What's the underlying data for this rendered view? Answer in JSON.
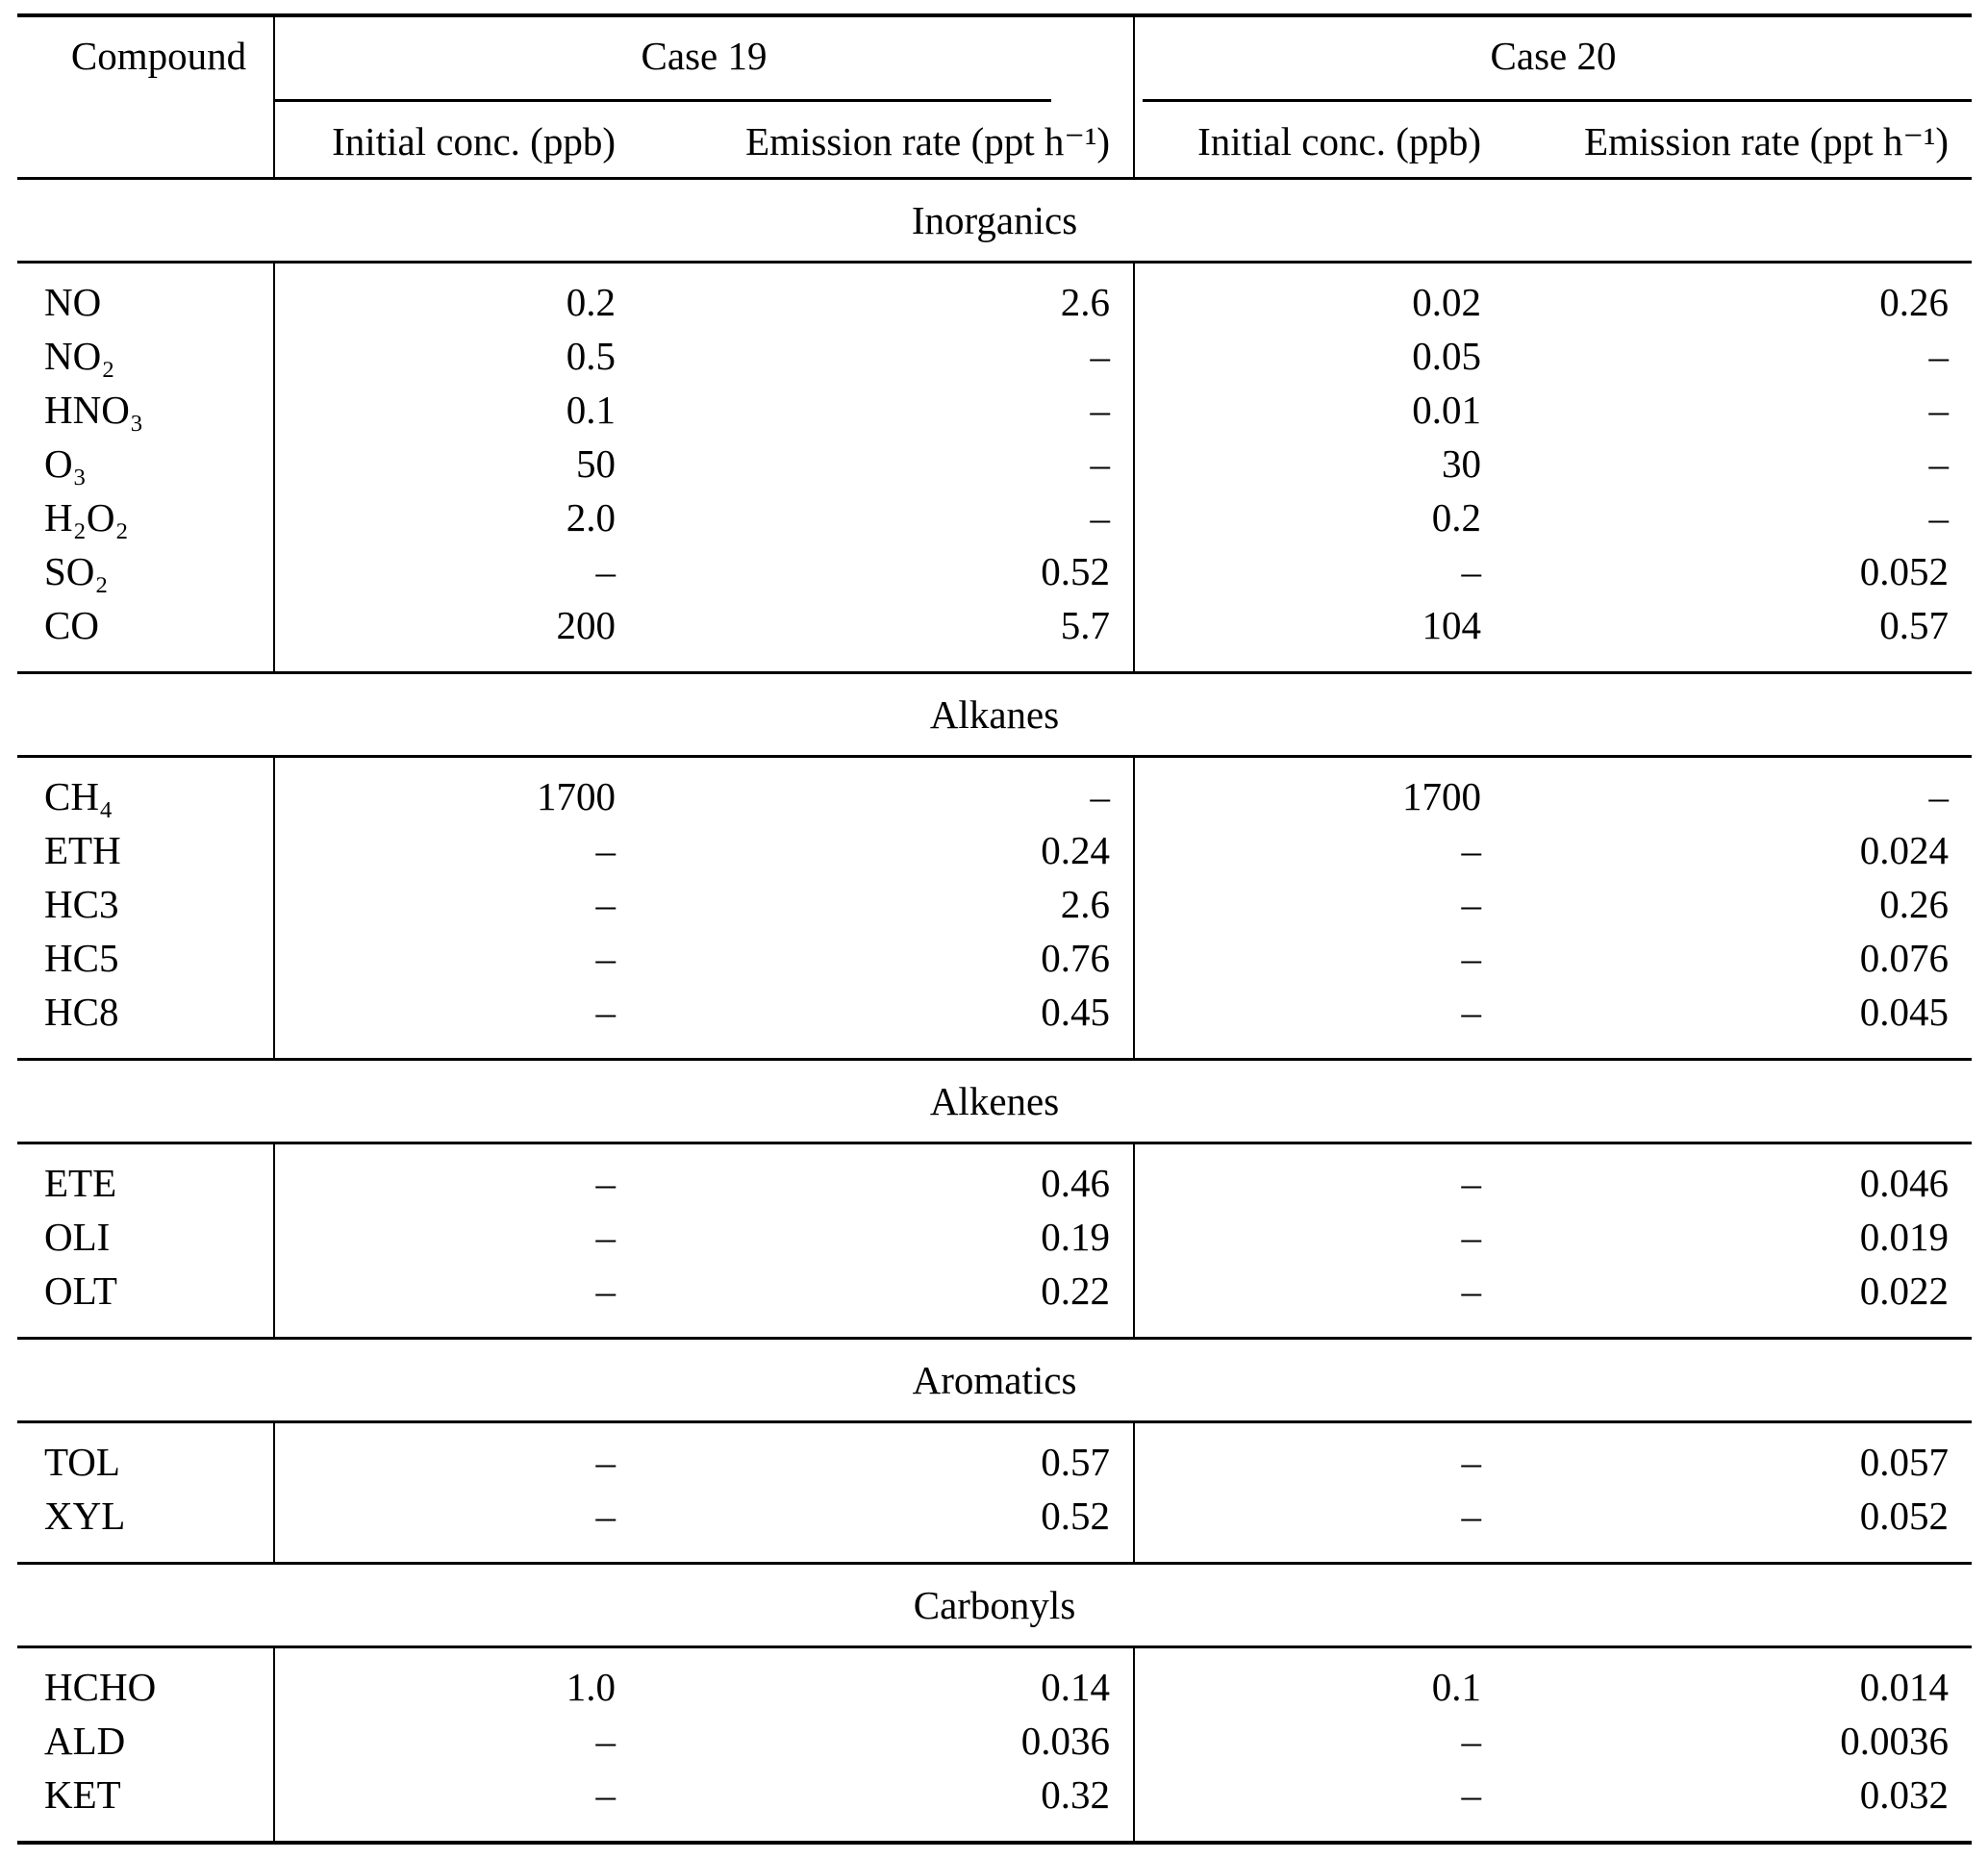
{
  "table": {
    "columns": {
      "compound": "Compound",
      "case19": "Case 19",
      "case20": "Case 20",
      "initial": "Initial conc. (ppb)",
      "emission": "Emission rate (ppt h⁻¹)"
    },
    "sections": [
      {
        "title": "Inorganics",
        "rows": [
          {
            "compound": "NO",
            "c19_initial": "0.2",
            "c19_emission": "2.6",
            "c20_initial": "0.02",
            "c20_emission": "0.26"
          },
          {
            "compound": "NO₂",
            "c19_initial": "0.5",
            "c19_emission": "–",
            "c20_initial": "0.05",
            "c20_emission": "–"
          },
          {
            "compound": "HNO₃",
            "c19_initial": "0.1",
            "c19_emission": "–",
            "c20_initial": "0.01",
            "c20_emission": "–"
          },
          {
            "compound": "O₃",
            "c19_initial": "50",
            "c19_emission": "–",
            "c20_initial": "30",
            "c20_emission": "–"
          },
          {
            "compound": "H₂O₂",
            "c19_initial": "2.0",
            "c19_emission": "–",
            "c20_initial": "0.2",
            "c20_emission": "–"
          },
          {
            "compound": "SO₂",
            "c19_initial": "–",
            "c19_emission": "0.52",
            "c20_initial": "–",
            "c20_emission": "0.052"
          },
          {
            "compound": "CO",
            "c19_initial": "200",
            "c19_emission": "5.7",
            "c20_initial": "104",
            "c20_emission": "0.57"
          }
        ]
      },
      {
        "title": "Alkanes",
        "rows": [
          {
            "compound": "CH₄",
            "c19_initial": "1700",
            "c19_emission": "–",
            "c20_initial": "1700",
            "c20_emission": "–"
          },
          {
            "compound": "ETH",
            "c19_initial": "–",
            "c19_emission": "0.24",
            "c20_initial": "–",
            "c20_emission": "0.024"
          },
          {
            "compound": "HC3",
            "c19_initial": "–",
            "c19_emission": "2.6",
            "c20_initial": "–",
            "c20_emission": "0.26"
          },
          {
            "compound": "HC5",
            "c19_initial": "–",
            "c19_emission": "0.76",
            "c20_initial": "–",
            "c20_emission": "0.076"
          },
          {
            "compound": "HC8",
            "c19_initial": "–",
            "c19_emission": "0.45",
            "c20_initial": "–",
            "c20_emission": "0.045"
          }
        ]
      },
      {
        "title": "Alkenes",
        "rows": [
          {
            "compound": "ETE",
            "c19_initial": "–",
            "c19_emission": "0.46",
            "c20_initial": "–",
            "c20_emission": "0.046"
          },
          {
            "compound": "OLI",
            "c19_initial": "–",
            "c19_emission": "0.19",
            "c20_initial": "–",
            "c20_emission": "0.019"
          },
          {
            "compound": "OLT",
            "c19_initial": "–",
            "c19_emission": "0.22",
            "c20_initial": "–",
            "c20_emission": "0.022"
          }
        ]
      },
      {
        "title": "Aromatics",
        "rows": [
          {
            "compound": "TOL",
            "c19_initial": "–",
            "c19_emission": "0.57",
            "c20_initial": "–",
            "c20_emission": "0.057"
          },
          {
            "compound": "XYL",
            "c19_initial": "–",
            "c19_emission": "0.52",
            "c20_initial": "–",
            "c20_emission": "0.052"
          }
        ]
      },
      {
        "title": "Carbonyls",
        "rows": [
          {
            "compound": "HCHO",
            "c19_initial": "1.0",
            "c19_emission": "0.14",
            "c20_initial": "0.1",
            "c20_emission": "0.014"
          },
          {
            "compound": "ALD",
            "c19_initial": "–",
            "c19_emission": "0.036",
            "c20_initial": "–",
            "c20_emission": "0.0036"
          },
          {
            "compound": "KET",
            "c19_initial": "–",
            "c19_emission": "0.32",
            "c20_initial": "–",
            "c20_emission": "0.032"
          }
        ]
      }
    ]
  }
}
